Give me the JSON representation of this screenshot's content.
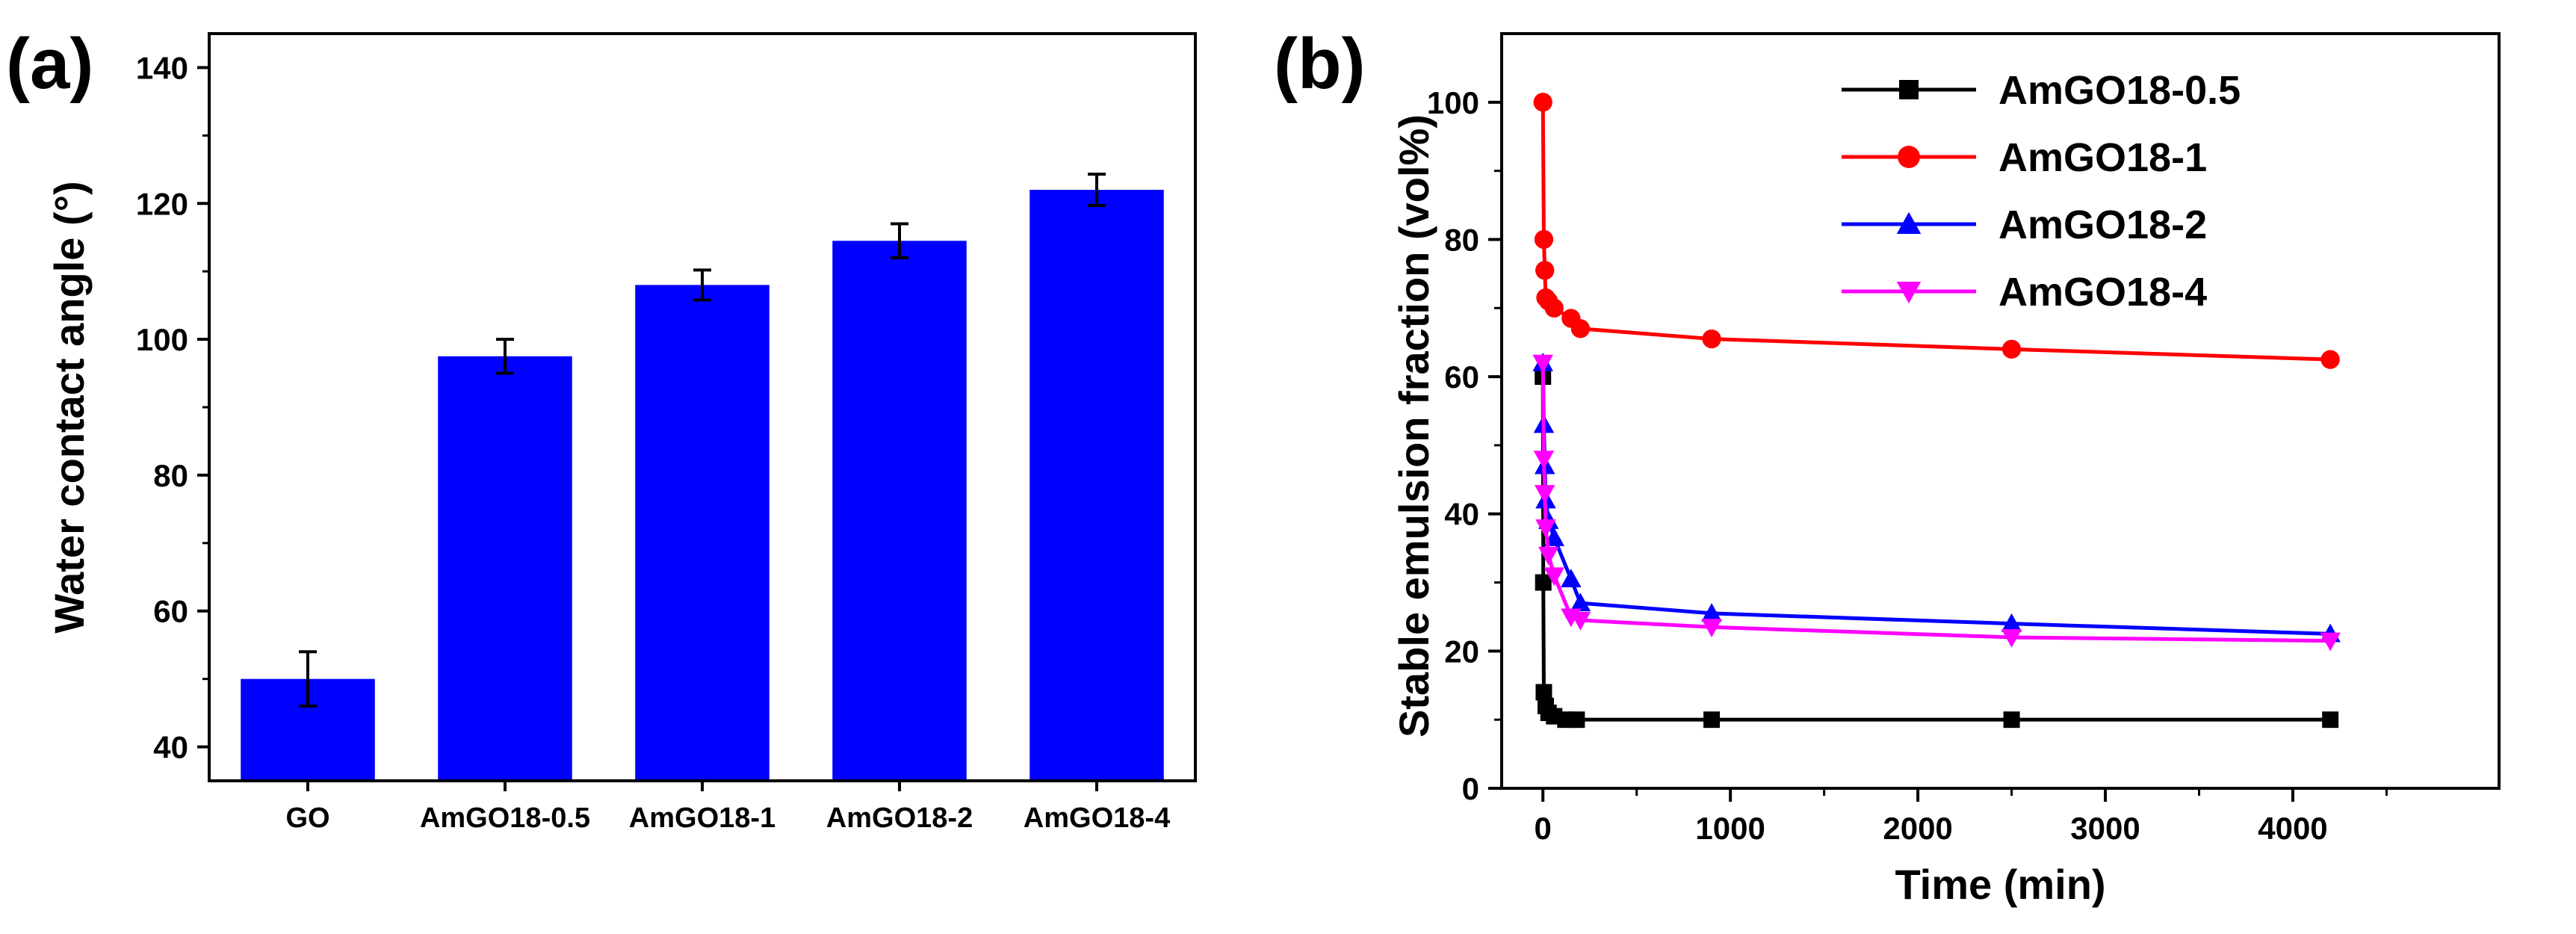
{
  "figure": {
    "panels": [
      {
        "label": "(a)"
      },
      {
        "label": "(b)"
      }
    ]
  },
  "colors": {
    "bar": "#0000ff",
    "axis": "#000000",
    "series": [
      "#000000",
      "#ff0000",
      "#0000ff",
      "#ff00ff"
    ]
  },
  "chart_data": [
    {
      "type": "bar",
      "title": "",
      "xlabel": "",
      "ylabel": "Water contact angle (°)",
      "categories": [
        "GO",
        "AmGO18-0.5",
        "AmGO18-1",
        "AmGO18-2",
        "AmGO18-4"
      ],
      "values": [
        50,
        97.5,
        108,
        114.5,
        122
      ],
      "errors": [
        4,
        2.5,
        2.2,
        2.5,
        2.3
      ],
      "ylim": [
        35,
        145
      ],
      "yticks": [
        40,
        60,
        80,
        100,
        120,
        140
      ],
      "grid": false
    },
    {
      "type": "line",
      "title": "",
      "xlabel": "Time (min)",
      "ylabel": "Stable emulsion fraction (vol%)",
      "xlim": [
        -220,
        5100
      ],
      "ylim": [
        0,
        110
      ],
      "xticks": [
        0,
        1000,
        2000,
        3000,
        4000
      ],
      "yticks": [
        0,
        20,
        40,
        60,
        80,
        100
      ],
      "legend_position": "top-right",
      "grid": false,
      "series": [
        {
          "name": "AmGO18-0.5",
          "marker": "square",
          "x": [
            0,
            2,
            5,
            15,
            30,
            60,
            120,
            180,
            900,
            2500,
            4200
          ],
          "y": [
            60,
            30,
            14,
            12,
            11,
            10.5,
            10,
            10,
            10,
            10,
            10
          ]
        },
        {
          "name": "AmGO18-1",
          "marker": "circle",
          "x": [
            0,
            5,
            10,
            15,
            30,
            60,
            150,
            200,
            900,
            2500,
            4200
          ],
          "y": [
            100,
            80,
            75.5,
            71.5,
            71,
            70,
            68.5,
            67,
            65.5,
            64,
            62.5
          ]
        },
        {
          "name": "AmGO18-2",
          "marker": "triangle-up",
          "x": [
            0,
            5,
            10,
            15,
            30,
            60,
            150,
            200,
            900,
            2500,
            4200
          ],
          "y": [
            62,
            53,
            47,
            42,
            39,
            36.5,
            30.5,
            27,
            25.5,
            24,
            22.5
          ]
        },
        {
          "name": "AmGO18-4",
          "marker": "triangle-down",
          "x": [
            0,
            5,
            10,
            15,
            30,
            60,
            150,
            200,
            900,
            2500,
            4200
          ],
          "y": [
            62,
            48,
            43,
            38,
            34,
            31,
            25,
            24.5,
            23.5,
            22,
            21.5
          ]
        }
      ]
    }
  ]
}
